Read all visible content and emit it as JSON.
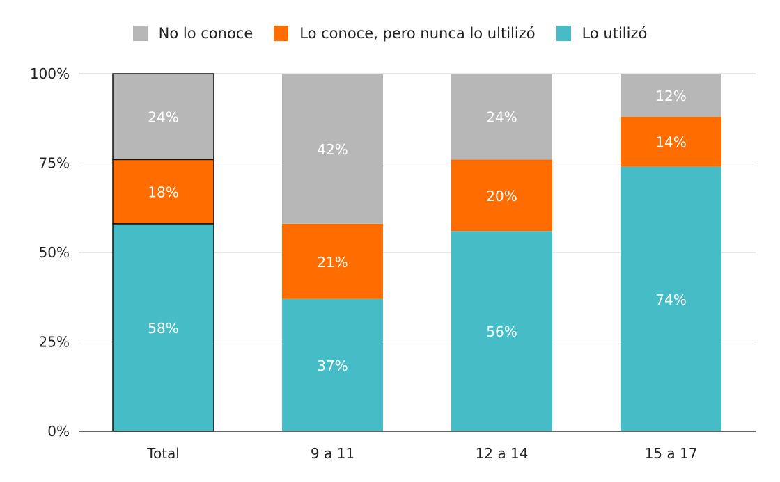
{
  "chart_data": {
    "type": "bar",
    "stacked": true,
    "categories": [
      "Total",
      "9 a 11",
      "12 a 14",
      "15 a 17"
    ],
    "series": [
      {
        "name": "Lo utilizó",
        "color": "#46bdc6",
        "values": [
          58,
          37,
          56,
          74
        ]
      },
      {
        "name": "Lo conoce, pero nunca lo ultilizó",
        "color": "#ff6d01",
        "values": [
          18,
          21,
          20,
          14
        ]
      },
      {
        "name": "No lo conoce",
        "color": "#b7b7b7",
        "values": [
          24,
          42,
          24,
          12
        ]
      }
    ],
    "legend_order": [
      "No lo conoce",
      "Lo conoce, pero nunca lo ultilizó",
      "Lo utilizó"
    ],
    "legend_position": "top",
    "y_ticks": [
      "0%",
      "25%",
      "50%",
      "75%",
      "100%"
    ],
    "ylim": [
      0,
      100
    ],
    "grid": true,
    "highlighted_category": "Total",
    "title": "",
    "xlabel": "",
    "ylabel": ""
  }
}
